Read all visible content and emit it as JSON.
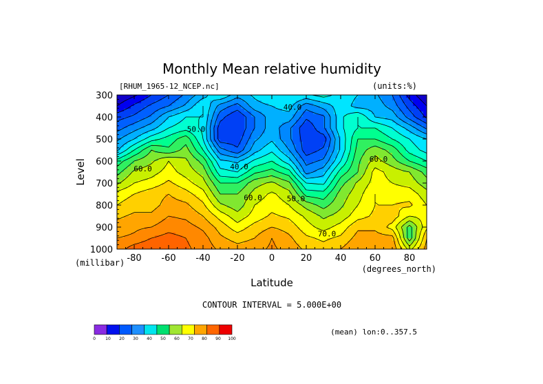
{
  "chart_data": {
    "type": "heatmap",
    "title": "Monthly Mean relative humidity",
    "dataset_label": "[RHUM_1965-12_NCEP.nc]",
    "units_label": "(units:%)",
    "xlabel": "Latitude",
    "ylabel": "Level",
    "x_units": "(degrees_north)",
    "y_units": "(millibar)",
    "xlim": [
      -90,
      90
    ],
    "ylim": [
      1000,
      300
    ],
    "x_ticks": [
      "-80",
      "-60",
      "-40",
      "-20",
      "0",
      "20",
      "40",
      "60",
      "80"
    ],
    "x_tick_values": [
      -80,
      -60,
      -40,
      -20,
      0,
      20,
      40,
      60,
      80
    ],
    "y_ticks": [
      "300",
      "400",
      "500",
      "600",
      "700",
      "800",
      "900",
      "1000"
    ],
    "y_tick_values": [
      300,
      400,
      500,
      600,
      700,
      800,
      900,
      1000
    ],
    "contour_interval_text": "CONTOUR INTERVAL = 5.000E+00",
    "footnote": "(mean) lon:0..357.5",
    "contour_labels": [
      {
        "text": "40.0",
        "lat": 12,
        "lev": 355
      },
      {
        "text": "50.0",
        "lat": -44,
        "lev": 455
      },
      {
        "text": "40.0",
        "lat": -19,
        "lev": 625
      },
      {
        "text": "60.0",
        "lat": -75,
        "lev": 635
      },
      {
        "text": "60.0",
        "lat": -11,
        "lev": 765
      },
      {
        "text": "50.0",
        "lat": 14,
        "lev": 770
      },
      {
        "text": "70.0",
        "lat": 32,
        "lev": 930
      },
      {
        "text": "60.0",
        "lat": 62,
        "lev": 590
      }
    ],
    "colorbar": {
      "levels": [
        "0",
        "10",
        "20",
        "30",
        "40",
        "50",
        "60",
        "70",
        "80",
        "90",
        "100"
      ],
      "colors": [
        "#8a2be2",
        "#0010ee",
        "#005aff",
        "#1e90ff",
        "#00e5ee",
        "#00e070",
        "#a0e632",
        "#ffff00",
        "#ffa500",
        "#ff6600",
        "#ee0000"
      ]
    },
    "palette": {
      "10": "#1000c8",
      "15": "#0000f0",
      "20": "#0040f5",
      "25": "#0060ff",
      "30": "#0088ff",
      "35": "#00b0ff",
      "40": "#00e5ff",
      "45": "#00ffd0",
      "50": "#00ff90",
      "55": "#30f060",
      "60": "#80e830",
      "65": "#c8f000",
      "70": "#ffff00",
      "75": "#ffd000",
      "80": "#ffa500",
      "85": "#ff8800",
      "90": "#ff6400",
      "95": "#ff3000"
    },
    "levels": [
      300,
      350,
      400,
      450,
      500,
      550,
      600,
      650,
      700,
      750,
      800,
      850,
      900,
      950,
      1000
    ],
    "lats": [
      -90,
      -80,
      -70,
      -60,
      -50,
      -40,
      -30,
      -20,
      -10,
      0,
      10,
      20,
      30,
      40,
      50,
      60,
      70,
      80,
      90
    ],
    "rh_rows": [
      [
        10,
        14,
        20,
        25,
        31,
        38,
        45,
        37,
        41,
        45,
        45,
        44,
        47,
        43,
        40,
        36,
        30,
        18,
        10
      ],
      [
        15,
        21,
        26,
        30,
        36,
        45,
        33,
        28,
        38,
        40,
        42,
        32,
        37,
        43,
        38,
        38,
        33,
        23,
        15
      ],
      [
        23,
        26,
        31,
        40,
        45,
        45,
        27,
        20,
        30,
        38,
        38,
        26,
        29,
        44,
        50,
        40,
        38,
        28,
        19
      ],
      [
        28,
        33,
        38,
        45,
        48,
        44,
        22,
        20,
        30,
        38,
        31,
        21,
        29,
        44,
        50,
        50,
        45,
        38,
        29
      ],
      [
        34,
        40,
        48,
        52,
        58,
        45,
        22,
        22,
        34,
        39,
        31,
        22,
        22,
        41,
        55,
        55,
        50,
        45,
        40
      ],
      [
        39,
        50,
        60,
        56,
        62,
        50,
        32,
        26,
        38,
        44,
        35,
        22,
        26,
        41,
        57,
        63,
        58,
        48,
        43
      ],
      [
        52,
        60,
        64,
        70,
        66,
        58,
        41,
        39,
        46,
        50,
        42,
        28,
        31,
        45,
        59,
        67,
        62,
        55,
        50
      ],
      [
        58,
        66,
        68,
        72,
        68,
        63,
        47,
        45,
        54,
        57,
        52,
        33,
        38,
        52,
        60,
        72,
        68,
        65,
        58
      ],
      [
        64,
        70,
        72,
        76,
        72,
        67,
        55,
        55,
        63,
        66,
        61,
        45,
        44,
        58,
        66,
        72,
        70,
        68,
        62
      ],
      [
        72,
        75,
        78,
        80,
        77,
        72,
        60,
        60,
        67,
        71,
        67,
        53,
        52,
        62,
        68,
        75,
        73,
        73,
        67
      ],
      [
        75,
        78,
        78,
        82,
        81,
        76,
        66,
        62,
        70,
        73,
        70,
        63,
        58,
        64,
        70,
        75,
        75,
        76,
        70
      ],
      [
        79,
        81,
        81,
        85,
        84,
        80,
        73,
        67,
        72,
        76,
        74,
        69,
        64,
        67,
        73,
        76,
        78,
        70,
        72
      ],
      [
        82,
        84,
        85,
        88,
        87,
        84,
        78,
        72,
        77,
        80,
        78,
        72,
        68,
        72,
        79,
        79,
        73,
        58,
        74
      ],
      [
        85,
        86,
        90,
        92,
        90,
        87,
        81,
        78,
        80,
        85,
        81,
        76,
        74,
        76,
        82,
        82,
        82,
        57,
        80
      ],
      [
        87,
        93,
        95,
        93,
        91,
        88,
        84,
        82,
        83,
        86,
        83,
        79,
        77,
        80,
        85,
        83,
        84,
        68,
        82
      ]
    ]
  }
}
